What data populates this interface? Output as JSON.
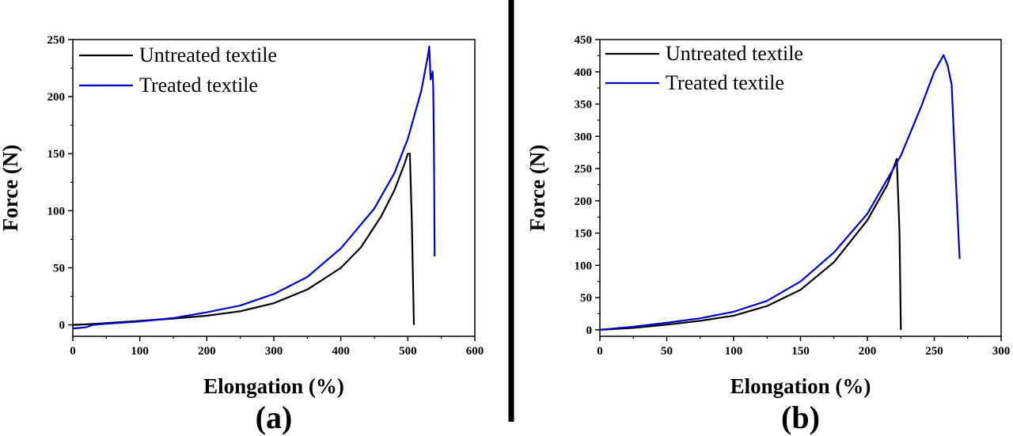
{
  "chart_data": [
    {
      "type": "line",
      "panel_label": "(a)",
      "xlabel": "Elongation (%)",
      "ylabel": "Force (N)",
      "xlim": [
        0,
        600
      ],
      "ylim": [
        -10,
        250
      ],
      "xticks": [
        0,
        100,
        200,
        300,
        400,
        500,
        600
      ],
      "yticks": [
        0,
        50,
        100,
        150,
        200,
        250
      ],
      "legend_position": "top-left",
      "series": [
        {
          "name": "Untreated textile",
          "color": "#000000",
          "x": [
            0,
            20,
            50,
            100,
            150,
            200,
            250,
            300,
            350,
            400,
            430,
            460,
            480,
            495,
            500,
            503,
            506,
            509
          ],
          "y": [
            0,
            0.5,
            1.5,
            3.5,
            5.5,
            8,
            12,
            19,
            31,
            50,
            68,
            95,
            118,
            141,
            150,
            150,
            90,
            0
          ]
        },
        {
          "name": "Treated textile",
          "color": "#0000cc",
          "x": [
            0,
            5,
            20,
            30,
            50,
            100,
            150,
            200,
            250,
            265,
            300,
            350,
            400,
            450,
            480,
            500,
            520,
            530,
            532,
            534,
            537,
            538,
            539,
            540
          ],
          "y": [
            -3,
            -3,
            -2,
            0,
            1,
            3,
            6,
            11,
            17,
            20,
            27,
            42,
            67,
            102,
            133,
            163,
            205,
            236,
            244,
            215,
            222,
            205,
            150,
            60
          ]
        }
      ]
    },
    {
      "type": "line",
      "panel_label": "(b)",
      "xlabel": "Elongation (%)",
      "ylabel": "Force (N)",
      "xlim": [
        0,
        300
      ],
      "ylim": [
        -10,
        450
      ],
      "xticks": [
        0,
        50,
        100,
        150,
        200,
        250,
        300
      ],
      "yticks": [
        0,
        50,
        100,
        150,
        200,
        250,
        300,
        350,
        400,
        450
      ],
      "legend_position": "top-left",
      "series": [
        {
          "name": "Untreated textile",
          "color": "#000000",
          "x": [
            0,
            25,
            50,
            75,
            100,
            125,
            150,
            175,
            200,
            215,
            222,
            224,
            225
          ],
          "y": [
            0,
            3,
            8,
            14,
            22,
            37,
            62,
            105,
            170,
            225,
            265,
            150,
            0
          ]
        },
        {
          "name": "Treated textile",
          "color": "#0000cc",
          "x": [
            0,
            25,
            50,
            75,
            100,
            125,
            150,
            175,
            200,
            225,
            240,
            250,
            257,
            260,
            263,
            266,
            269
          ],
          "y": [
            0,
            5,
            11,
            18,
            28,
            45,
            75,
            120,
            180,
            270,
            345,
            400,
            426,
            410,
            380,
            240,
            110
          ]
        }
      ]
    }
  ]
}
